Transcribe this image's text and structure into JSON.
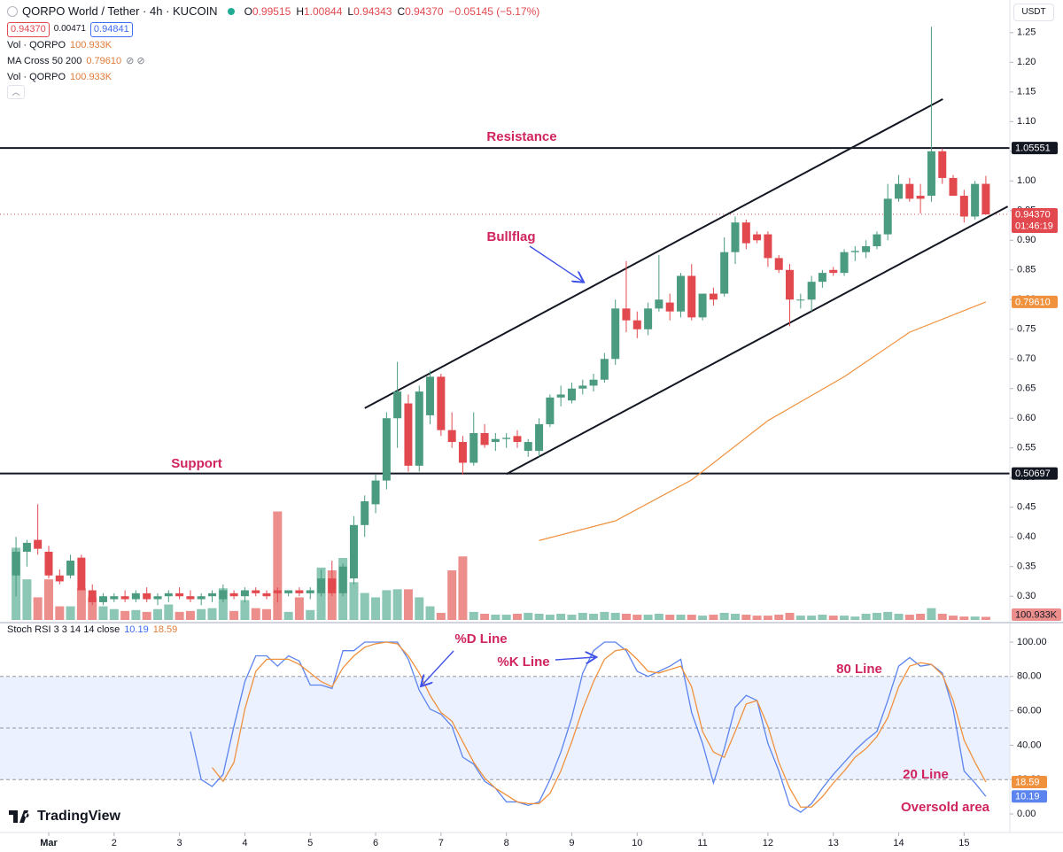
{
  "chart_data": [
    {
      "type": "candlestick",
      "title": "QORPO World / Tether · 4h · KUCOIN",
      "legend": [
        {
          "label": "O",
          "value": "0.99515"
        },
        {
          "label": "H",
          "value": "1.00844"
        },
        {
          "label": "L",
          "value": "0.94343"
        },
        {
          "label": "C",
          "value": "0.94370"
        },
        {
          "label": "",
          "value": "−0.05145 (−5.17%)"
        }
      ],
      "last_price_label": "0.94370",
      "spread": "0.00471",
      "ask": "0.94841",
      "countdown": "01:46:19",
      "currency": "USDT",
      "brand": "TradingView",
      "x": [
        0.5,
        0.667,
        0.833,
        1,
        1.167,
        1.333,
        1.5,
        1.667,
        1.833,
        2,
        2.167,
        2.333,
        2.5,
        2.667,
        2.833,
        3,
        3.167,
        3.333,
        3.5,
        3.667,
        3.833,
        4,
        4.167,
        4.333,
        4.5,
        4.667,
        4.833,
        5,
        5.167,
        5.333,
        5.5,
        5.667,
        5.833,
        6,
        6.167,
        6.333,
        6.5,
        6.667,
        6.833,
        7,
        7.167,
        7.333,
        7.5,
        7.667,
        7.833,
        8,
        8.167,
        8.333,
        8.5,
        8.667,
        8.833,
        9,
        9.167,
        9.333,
        9.5,
        9.667,
        9.833,
        10,
        10.167,
        10.333,
        10.5,
        10.667,
        10.833,
        11,
        11.167,
        11.333,
        11.5,
        11.667,
        11.833,
        12,
        12.167,
        12.333,
        12.5,
        12.667,
        12.833,
        13,
        13.167,
        13.333,
        13.5,
        13.667,
        13.833,
        14,
        14.167,
        14.333,
        14.5,
        14.667,
        14.833,
        15,
        15.167,
        15.333
      ],
      "open": [
        0.335,
        0.375,
        0.395,
        0.375,
        0.335,
        0.335,
        0.365,
        0.31,
        0.29,
        0.295,
        0.3,
        0.295,
        0.305,
        0.295,
        0.3,
        0.305,
        0.3,
        0.295,
        0.3,
        0.295,
        0.305,
        0.3,
        0.31,
        0.305,
        0.31,
        0.305,
        0.31,
        0.305,
        0.305,
        0.33,
        0.305,
        0.33,
        0.42,
        0.455,
        0.495,
        0.6,
        0.625,
        0.52,
        0.605,
        0.67,
        0.58,
        0.56,
        0.525,
        0.575,
        0.56,
        0.565,
        0.57,
        0.545,
        0.545,
        0.59,
        0.635,
        0.63,
        0.65,
        0.655,
        0.665,
        0.7,
        0.785,
        0.765,
        0.75,
        0.785,
        0.795,
        0.78,
        0.84,
        0.77,
        0.81,
        0.81,
        0.88,
        0.93,
        0.91,
        0.91,
        0.87,
        0.85,
        0.8,
        0.8,
        0.83,
        0.85,
        0.845,
        0.88,
        0.88,
        0.89,
        0.91,
        0.97,
        0.995,
        0.975,
        0.975,
        1.05,
        1.005,
        0.975,
        0.94,
        0.99515
      ],
      "high": [
        0.4,
        0.395,
        0.455,
        0.385,
        0.345,
        0.37,
        0.37,
        0.32,
        0.305,
        0.305,
        0.31,
        0.31,
        0.315,
        0.305,
        0.31,
        0.315,
        0.31,
        0.305,
        0.31,
        0.32,
        0.31,
        0.315,
        0.315,
        0.31,
        0.315,
        0.31,
        0.315,
        0.315,
        0.345,
        0.36,
        0.355,
        0.435,
        0.47,
        0.505,
        0.61,
        0.695,
        0.64,
        0.655,
        0.68,
        0.675,
        0.61,
        0.57,
        0.61,
        0.59,
        0.575,
        0.575,
        0.58,
        0.565,
        0.6,
        0.64,
        0.655,
        0.66,
        0.665,
        0.675,
        0.71,
        0.8,
        0.865,
        0.78,
        0.795,
        0.875,
        0.81,
        0.845,
        0.86,
        0.81,
        0.82,
        0.905,
        0.94,
        0.935,
        0.915,
        0.915,
        0.875,
        0.86,
        0.81,
        0.84,
        0.85,
        0.855,
        0.885,
        0.89,
        0.9,
        0.915,
        0.995,
        1.01,
        1.005,
        0.995,
        1.26,
        1.055,
        1.01,
        0.985,
        1.0,
        1.00844
      ],
      "low": [
        0.3,
        0.35,
        0.37,
        0.33,
        0.32,
        0.33,
        0.31,
        0.285,
        0.285,
        0.29,
        0.29,
        0.29,
        0.29,
        0.285,
        0.29,
        0.295,
        0.29,
        0.285,
        0.29,
        0.29,
        0.295,
        0.29,
        0.3,
        0.295,
        0.29,
        0.3,
        0.3,
        0.295,
        0.3,
        0.3,
        0.3,
        0.32,
        0.4,
        0.44,
        0.48,
        0.55,
        0.51,
        0.51,
        0.59,
        0.57,
        0.55,
        0.505,
        0.52,
        0.55,
        0.545,
        0.55,
        0.55,
        0.535,
        0.535,
        0.585,
        0.62,
        0.625,
        0.64,
        0.645,
        0.66,
        0.69,
        0.745,
        0.735,
        0.74,
        0.78,
        0.765,
        0.77,
        0.765,
        0.765,
        0.79,
        0.805,
        0.86,
        0.885,
        0.895,
        0.855,
        0.845,
        0.755,
        0.785,
        0.78,
        0.82,
        0.84,
        0.84,
        0.865,
        0.87,
        0.885,
        0.9,
        0.965,
        0.965,
        0.945,
        0.965,
        0.995,
        0.975,
        0.93,
        0.935,
        0.94343
      ],
      "close": [
        0.375,
        0.39,
        0.38,
        0.335,
        0.325,
        0.36,
        0.31,
        0.29,
        0.3,
        0.3,
        0.295,
        0.305,
        0.295,
        0.3,
        0.305,
        0.3,
        0.295,
        0.3,
        0.305,
        0.31,
        0.3,
        0.31,
        0.305,
        0.3,
        0.305,
        0.31,
        0.305,
        0.31,
        0.33,
        0.305,
        0.35,
        0.42,
        0.46,
        0.495,
        0.6,
        0.645,
        0.52,
        0.645,
        0.67,
        0.58,
        0.56,
        0.525,
        0.575,
        0.555,
        0.565,
        0.567,
        0.56,
        0.56,
        0.59,
        0.635,
        0.64,
        0.65,
        0.655,
        0.665,
        0.7,
        0.785,
        0.765,
        0.75,
        0.785,
        0.8,
        0.78,
        0.84,
        0.77,
        0.81,
        0.8,
        0.88,
        0.93,
        0.895,
        0.9,
        0.87,
        0.85,
        0.8,
        0.8,
        0.83,
        0.845,
        0.845,
        0.88,
        0.882,
        0.89,
        0.91,
        0.97,
        0.995,
        0.97,
        0.97,
        1.05,
        1.005,
        0.975,
        0.94,
        0.995,
        0.9437
      ],
      "volume": [
        2330000,
        1310000,
        730000,
        1310000,
        440000,
        440000,
        1020000,
        730000,
        440000,
        350000,
        290000,
        320000,
        260000,
        350000,
        500000,
        260000,
        290000,
        350000,
        380000,
        1020000,
        290000,
        640000,
        380000,
        350000,
        3500000,
        260000,
        730000,
        320000,
        1690000,
        1600000,
        2000000,
        1220000,
        870000,
        730000,
        960000,
        990000,
        990000,
        730000,
        440000,
        230000,
        1600000,
        2050000,
        260000,
        200000,
        170000,
        170000,
        200000,
        230000,
        200000,
        170000,
        200000,
        170000,
        230000,
        200000,
        260000,
        230000,
        200000,
        170000,
        170000,
        200000,
        170000,
        170000,
        170000,
        140000,
        170000,
        230000,
        200000,
        170000,
        140000,
        140000,
        170000,
        230000,
        140000,
        140000,
        170000,
        140000,
        140000,
        110000,
        200000,
        230000,
        260000,
        200000,
        170000,
        200000,
        380000,
        200000,
        140000,
        110000,
        110000,
        100933
      ],
      "volume_name": "Vol · QORPO",
      "volume_last_label": "100.933K",
      "volume_lim": [
        0,
        7000000
      ],
      "up_color": "#4a9b7f",
      "down_color": "#e2494f",
      "up_volume_color": "#8cc6b5",
      "down_volume_color": "#ec8f8c",
      "ma": {
        "name": "MA Cross 50 200",
        "color": "#f0913e",
        "x": [
          8.5,
          9.667,
          10.833,
          12,
          13.167,
          14.167,
          15.333
        ],
        "values": [
          0.394,
          0.427,
          0.496,
          0.596,
          0.67,
          0.745,
          0.7961
        ],
        "last_label": "0.79610"
      },
      "levels": [
        {
          "name": "Resistance",
          "value": 1.05551,
          "label": "1.05551"
        },
        {
          "name": "Support",
          "value": 0.50697,
          "label": "0.50697"
        }
      ],
      "channel": [
        {
          "x": [
            5.833,
            14.675
          ],
          "values": [
            0.617,
            1.138
          ]
        },
        {
          "x": [
            8.0,
            15.668
          ],
          "values": [
            0.506,
            0.957
          ]
        }
      ],
      "annotations": [
        "Bullflag"
      ],
      "xlim": [
        0.255,
        15.7
      ],
      "xticks": [
        {
          "value": 1,
          "label": "Mar"
        },
        2,
        3,
        4,
        5,
        6,
        7,
        8,
        9,
        10,
        11,
        12,
        13,
        14,
        15
      ],
      "ylim": [
        0.26,
        1.305
      ],
      "yticks": [
        {
          "value": 0.3,
          "label": "0.30"
        },
        {
          "value": 0.35,
          "label": "0.35"
        },
        {
          "value": 0.4,
          "label": "0.40"
        },
        {
          "value": 0.45,
          "label": "0.45"
        },
        {
          "value": 0.5,
          "label": "0.50"
        },
        {
          "value": 0.55,
          "label": "0.55"
        },
        {
          "value": 0.6,
          "label": "0.60"
        },
        {
          "value": 0.65,
          "label": "0.65"
        },
        {
          "value": 0.7,
          "label": "0.70"
        },
        {
          "value": 0.75,
          "label": "0.75"
        },
        {
          "value": 0.8,
          "label": "0.80"
        },
        {
          "value": 0.85,
          "label": "0.85"
        },
        {
          "value": 0.9,
          "label": "0.90"
        },
        {
          "value": 0.95,
          "label": "0.95"
        },
        {
          "value": 1,
          "label": "1.00"
        },
        {
          "value": 1.05,
          "label": "1.05"
        },
        {
          "value": 1.1,
          "label": "1.10"
        },
        {
          "value": 1.15,
          "label": "1.15"
        },
        {
          "value": 1.2,
          "label": "1.20"
        },
        {
          "value": 1.25,
          "label": "1.25"
        }
      ]
    },
    {
      "type": "line",
      "title": "Stoch RSI 3 3 14 14 close",
      "series": [
        {
          "color": "#5b84ee",
          "values": [
            null,
            null,
            null,
            null,
            null,
            null,
            null,
            null,
            null,
            null,
            null,
            null,
            null,
            null,
            null,
            null,
            48,
            20,
            16,
            23,
            51,
            77,
            92,
            92,
            86,
            92,
            89,
            75,
            75,
            73,
            95,
            95,
            100,
            100,
            100,
            100,
            90,
            72,
            61,
            58,
            51,
            33,
            29,
            19,
            15,
            7,
            7,
            5,
            7,
            20,
            36,
            56,
            82,
            95,
            100,
            100,
            95,
            83,
            80,
            83,
            86,
            90,
            59,
            41,
            18,
            38,
            62,
            69,
            66,
            41,
            25,
            5,
            1,
            6,
            15,
            23,
            30,
            37,
            43,
            48,
            66,
            86,
            91,
            86,
            87,
            82,
            61,
            25,
            18,
            10.19
          ]
        },
        {
          "color": "#f0913e",
          "values": [
            null,
            null,
            null,
            null,
            null,
            null,
            null,
            null,
            null,
            null,
            null,
            null,
            null,
            null,
            null,
            null,
            null,
            null,
            27,
            19,
            30,
            61,
            83,
            90,
            90,
            90,
            87,
            82,
            77,
            74,
            85,
            92,
            97,
            99,
            100,
            99,
            92,
            82,
            69,
            59,
            54,
            42,
            30,
            21,
            15,
            11,
            7,
            6,
            6,
            12,
            25,
            42,
            61,
            77,
            90,
            95,
            96,
            90,
            83,
            82,
            84,
            86,
            74,
            48,
            36,
            33,
            48,
            64,
            66,
            51,
            30,
            15,
            4,
            4,
            10,
            18,
            25,
            33,
            38,
            45,
            56,
            74,
            86,
            88,
            87,
            81,
            66,
            43,
            30,
            18.59
          ]
        }
      ],
      "band_lines": [
        20,
        50,
        80
      ],
      "band_color": "#2962ff",
      "annotations": [
        "%D Line",
        "%K Line",
        "80 Line",
        "20 Line",
        "Oversold area"
      ],
      "ylim": [
        -10.8,
        110.3
      ],
      "yticks": [
        {
          "value": 0,
          "label": "0.00"
        },
        {
          "value": 20,
          "label": "20.00"
        },
        {
          "value": 40,
          "label": "40.00"
        },
        {
          "value": 60,
          "label": "60.00"
        },
        {
          "value": 80,
          "label": "80.00"
        },
        {
          "value": 100,
          "label": "100.00"
        }
      ]
    }
  ]
}
